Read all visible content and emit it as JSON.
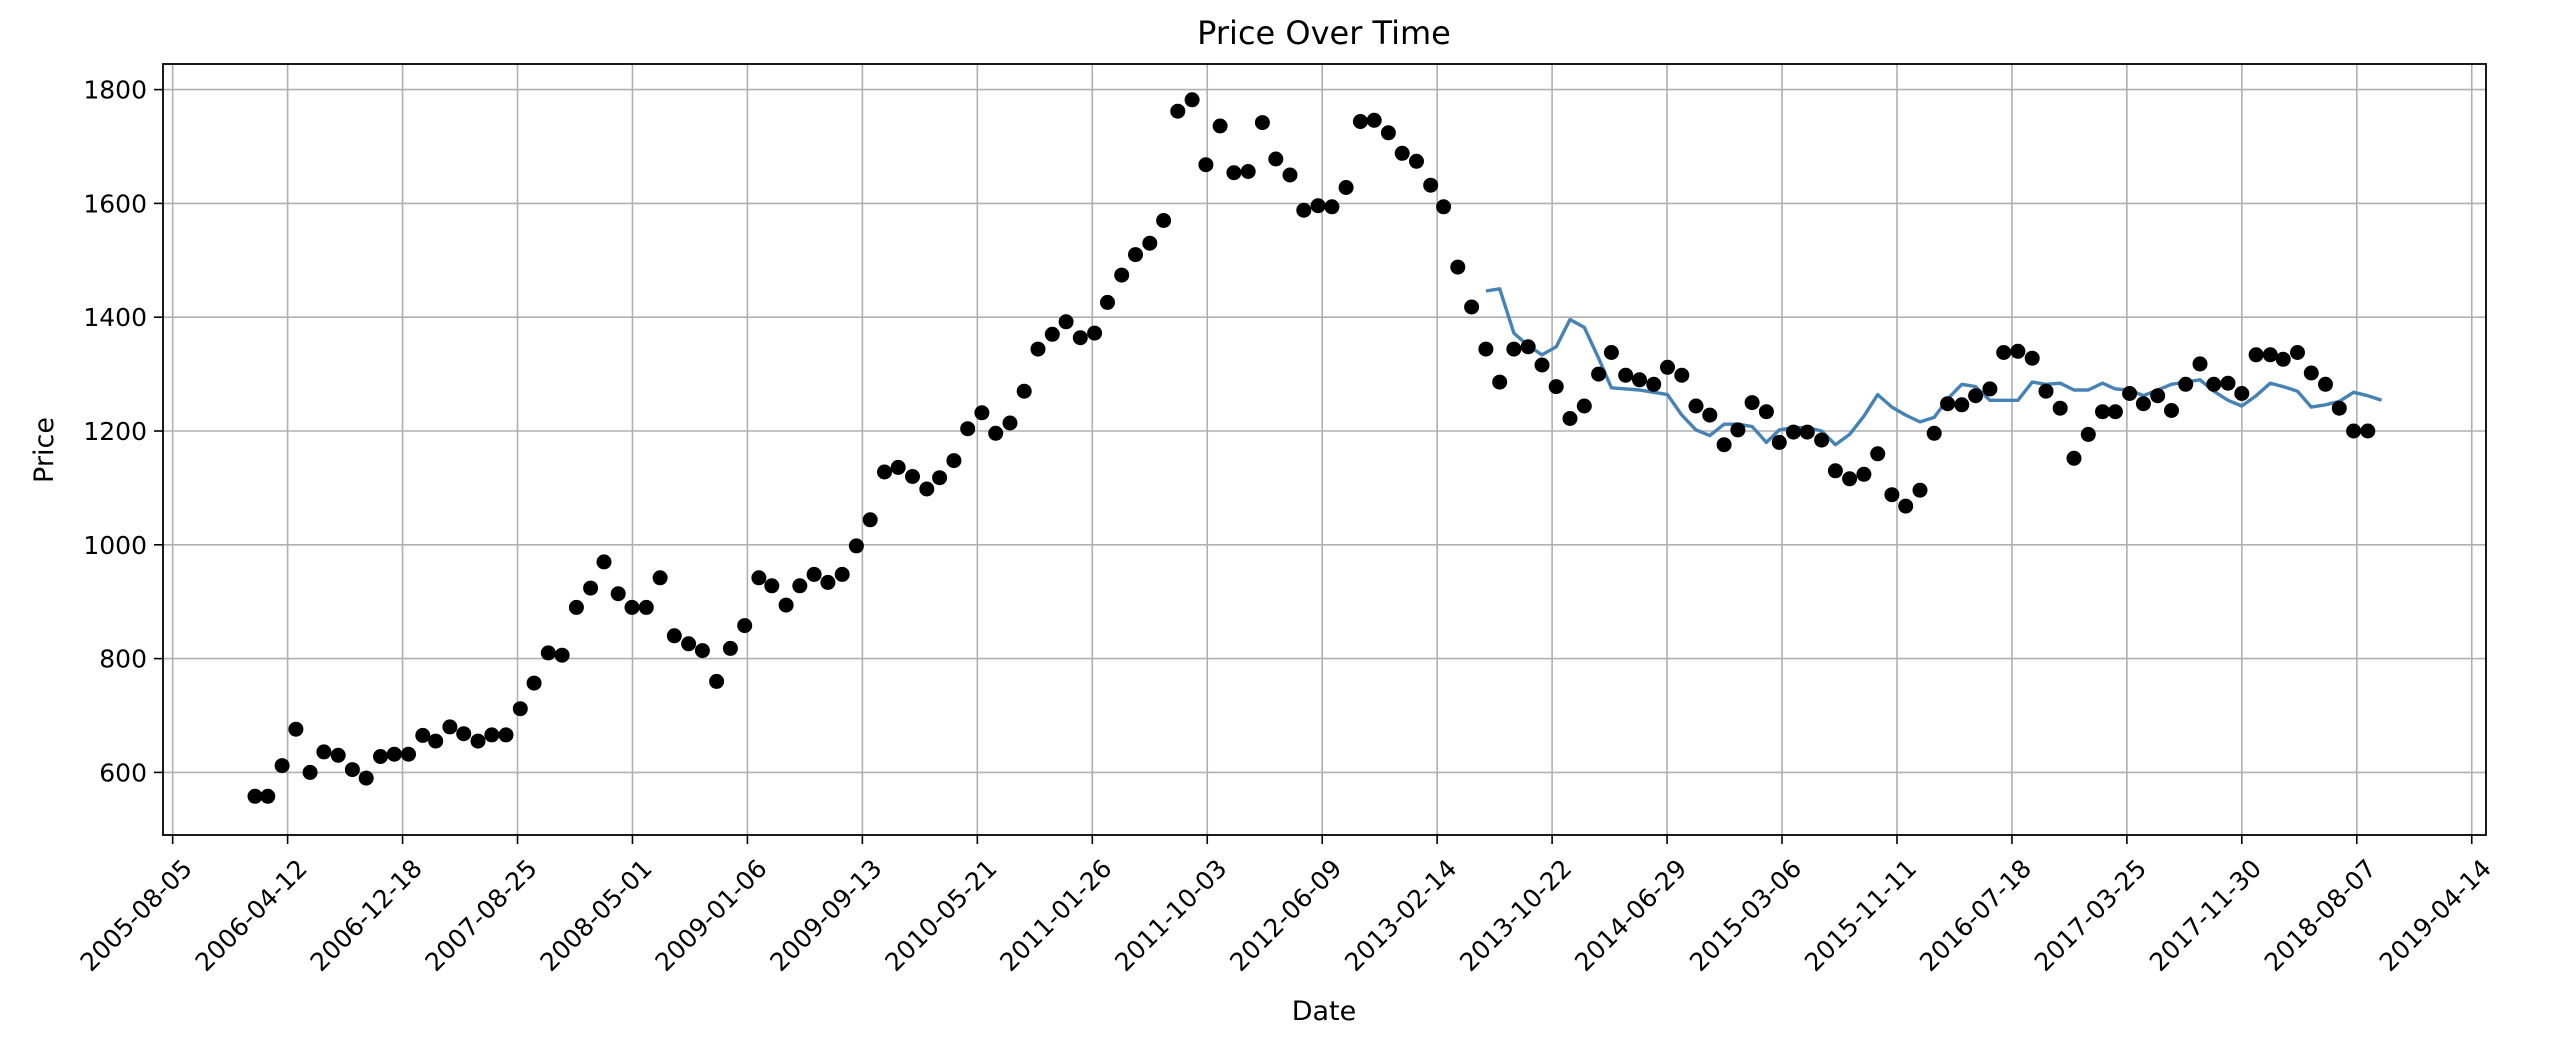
{
  "chart_data": {
    "type": "scatter",
    "title": "Price Over Time",
    "xlabel": "Date",
    "ylabel": "Price",
    "grid": true,
    "x_axis": {
      "range": [
        "2005-07-15",
        "2019-05-15"
      ],
      "ticks": [
        "2005-08-05",
        "2006-04-12",
        "2006-12-18",
        "2007-08-25",
        "2008-05-01",
        "2009-01-06",
        "2009-09-13",
        "2010-05-21",
        "2011-01-26",
        "2011-10-03",
        "2012-06-09",
        "2013-02-14",
        "2013-10-22",
        "2014-06-29",
        "2015-03-06",
        "2015-11-11",
        "2016-07-18",
        "2017-03-25",
        "2017-11-30",
        "2018-08-07",
        "2019-04-14"
      ]
    },
    "y_axis": {
      "range": [
        490,
        1845
      ],
      "ticks": [
        600,
        800,
        1000,
        1200,
        1400,
        1600,
        1800
      ]
    },
    "series": [
      {
        "kind": "scatter",
        "color": "#000000",
        "points": [
          [
            "2006-01-31",
            558
          ],
          [
            "2006-02-28",
            558
          ],
          [
            "2006-03-31",
            612
          ],
          [
            "2006-04-30",
            676
          ],
          [
            "2006-05-31",
            600
          ],
          [
            "2006-06-30",
            636
          ],
          [
            "2006-07-31",
            630
          ],
          [
            "2006-08-31",
            605
          ],
          [
            "2006-09-30",
            590
          ],
          [
            "2006-10-31",
            628
          ],
          [
            "2006-11-30",
            632
          ],
          [
            "2006-12-31",
            632
          ],
          [
            "2007-01-31",
            665
          ],
          [
            "2007-02-28",
            655
          ],
          [
            "2007-03-31",
            680
          ],
          [
            "2007-04-30",
            668
          ],
          [
            "2007-05-31",
            655
          ],
          [
            "2007-06-30",
            666
          ],
          [
            "2007-07-31",
            666
          ],
          [
            "2007-08-31",
            712
          ],
          [
            "2007-09-30",
            757
          ],
          [
            "2007-10-31",
            810
          ],
          [
            "2007-11-30",
            806
          ],
          [
            "2007-12-31",
            890
          ],
          [
            "2008-01-31",
            924
          ],
          [
            "2008-02-29",
            970
          ],
          [
            "2008-03-31",
            914
          ],
          [
            "2008-04-30",
            890
          ],
          [
            "2008-05-31",
            890
          ],
          [
            "2008-06-30",
            942
          ],
          [
            "2008-07-31",
            840
          ],
          [
            "2008-08-31",
            826
          ],
          [
            "2008-09-30",
            814
          ],
          [
            "2008-10-31",
            760
          ],
          [
            "2008-11-30",
            818
          ],
          [
            "2008-12-31",
            858
          ],
          [
            "2009-01-31",
            942
          ],
          [
            "2009-02-28",
            928
          ],
          [
            "2009-03-31",
            894
          ],
          [
            "2009-04-30",
            928
          ],
          [
            "2009-05-31",
            948
          ],
          [
            "2009-06-30",
            934
          ],
          [
            "2009-07-31",
            948
          ],
          [
            "2009-08-31",
            998
          ],
          [
            "2009-09-30",
            1044
          ],
          [
            "2009-10-31",
            1128
          ],
          [
            "2009-11-30",
            1136
          ],
          [
            "2009-12-31",
            1120
          ],
          [
            "2010-01-31",
            1098
          ],
          [
            "2010-02-28",
            1118
          ],
          [
            "2010-03-31",
            1148
          ],
          [
            "2010-04-30",
            1204
          ],
          [
            "2010-05-31",
            1232
          ],
          [
            "2010-06-30",
            1196
          ],
          [
            "2010-07-31",
            1214
          ],
          [
            "2010-08-31",
            1270
          ],
          [
            "2010-09-30",
            1344
          ],
          [
            "2010-10-31",
            1370
          ],
          [
            "2010-11-30",
            1392
          ],
          [
            "2010-12-31",
            1364
          ],
          [
            "2011-01-31",
            1372
          ],
          [
            "2011-02-28",
            1426
          ],
          [
            "2011-03-31",
            1474
          ],
          [
            "2011-04-30",
            1510
          ],
          [
            "2011-05-31",
            1530
          ],
          [
            "2011-06-30",
            1570
          ],
          [
            "2011-07-31",
            1762
          ],
          [
            "2011-08-31",
            1782
          ],
          [
            "2011-09-30",
            1668
          ],
          [
            "2011-10-31",
            1736
          ],
          [
            "2011-11-30",
            1654
          ],
          [
            "2011-12-31",
            1656
          ],
          [
            "2012-01-31",
            1742
          ],
          [
            "2012-02-29",
            1678
          ],
          [
            "2012-03-31",
            1650
          ],
          [
            "2012-04-30",
            1588
          ],
          [
            "2012-05-31",
            1596
          ],
          [
            "2012-06-30",
            1594
          ],
          [
            "2012-07-31",
            1628
          ],
          [
            "2012-08-31",
            1744
          ],
          [
            "2012-09-30",
            1746
          ],
          [
            "2012-10-31",
            1724
          ],
          [
            "2012-11-30",
            1688
          ],
          [
            "2012-12-31",
            1674
          ],
          [
            "2013-01-31",
            1632
          ],
          [
            "2013-02-28",
            1594
          ],
          [
            "2013-03-31",
            1488
          ],
          [
            "2013-04-30",
            1418
          ],
          [
            "2013-05-31",
            1344
          ],
          [
            "2013-06-30",
            1286
          ],
          [
            "2013-07-31",
            1344
          ],
          [
            "2013-08-31",
            1348
          ],
          [
            "2013-09-30",
            1316
          ],
          [
            "2013-10-31",
            1278
          ],
          [
            "2013-11-30",
            1222
          ],
          [
            "2013-12-31",
            1244
          ],
          [
            "2014-01-31",
            1300
          ],
          [
            "2014-02-28",
            1338
          ],
          [
            "2014-03-31",
            1298
          ],
          [
            "2014-04-30",
            1290
          ],
          [
            "2014-05-31",
            1282
          ],
          [
            "2014-06-30",
            1312
          ],
          [
            "2014-07-31",
            1298
          ],
          [
            "2014-08-31",
            1244
          ],
          [
            "2014-09-30",
            1228
          ],
          [
            "2014-10-31",
            1176
          ],
          [
            "2014-11-30",
            1202
          ],
          [
            "2014-12-31",
            1250
          ],
          [
            "2015-01-31",
            1234
          ],
          [
            "2015-02-28",
            1180
          ],
          [
            "2015-03-31",
            1198
          ],
          [
            "2015-04-30",
            1198
          ],
          [
            "2015-05-31",
            1184
          ],
          [
            "2015-06-30",
            1130
          ],
          [
            "2015-07-31",
            1116
          ],
          [
            "2015-08-31",
            1124
          ],
          [
            "2015-09-30",
            1160
          ],
          [
            "2015-10-31",
            1088
          ],
          [
            "2015-11-30",
            1068
          ],
          [
            "2015-12-31",
            1096
          ],
          [
            "2016-01-31",
            1196
          ],
          [
            "2016-02-29",
            1248
          ],
          [
            "2016-03-31",
            1246
          ],
          [
            "2016-04-30",
            1262
          ],
          [
            "2016-05-31",
            1274
          ],
          [
            "2016-06-30",
            1338
          ],
          [
            "2016-07-31",
            1340
          ],
          [
            "2016-08-31",
            1328
          ],
          [
            "2016-09-30",
            1270
          ],
          [
            "2016-10-31",
            1240
          ],
          [
            "2016-11-30",
            1152
          ],
          [
            "2016-12-31",
            1194
          ],
          [
            "2017-01-31",
            1234
          ],
          [
            "2017-02-28",
            1234
          ],
          [
            "2017-03-31",
            1266
          ],
          [
            "2017-04-30",
            1248
          ],
          [
            "2017-05-31",
            1262
          ],
          [
            "2017-06-30",
            1236
          ],
          [
            "2017-07-31",
            1282
          ],
          [
            "2017-08-31",
            1318
          ],
          [
            "2017-09-30",
            1282
          ],
          [
            "2017-10-31",
            1284
          ],
          [
            "2017-11-30",
            1266
          ],
          [
            "2017-12-31",
            1334
          ],
          [
            "2018-01-31",
            1334
          ],
          [
            "2018-02-28",
            1326
          ],
          [
            "2018-03-31",
            1338
          ],
          [
            "2018-04-30",
            1302
          ],
          [
            "2018-05-31",
            1282
          ],
          [
            "2018-06-30",
            1240
          ],
          [
            "2018-07-31",
            1200
          ],
          [
            "2018-08-31",
            1200
          ]
        ]
      },
      {
        "kind": "line",
        "color": "#4682b4",
        "points": [
          [
            "2013-05-31",
            1446
          ],
          [
            "2013-06-30",
            1450
          ],
          [
            "2013-07-31",
            1372
          ],
          [
            "2013-08-31",
            1350
          ],
          [
            "2013-09-30",
            1334
          ],
          [
            "2013-10-31",
            1348
          ],
          [
            "2013-11-30",
            1396
          ],
          [
            "2013-12-31",
            1382
          ],
          [
            "2014-01-31",
            1328
          ],
          [
            "2014-02-28",
            1276
          ],
          [
            "2014-03-31",
            1274
          ],
          [
            "2014-04-30",
            1272
          ],
          [
            "2014-05-31",
            1268
          ],
          [
            "2014-06-30",
            1264
          ],
          [
            "2014-07-31",
            1228
          ],
          [
            "2014-08-31",
            1202
          ],
          [
            "2014-09-30",
            1192
          ],
          [
            "2014-10-31",
            1212
          ],
          [
            "2014-11-30",
            1212
          ],
          [
            "2014-12-31",
            1208
          ],
          [
            "2015-01-31",
            1180
          ],
          [
            "2015-02-28",
            1202
          ],
          [
            "2015-03-31",
            1206
          ],
          [
            "2015-04-30",
            1206
          ],
          [
            "2015-05-31",
            1200
          ],
          [
            "2015-06-30",
            1176
          ],
          [
            "2015-07-31",
            1194
          ],
          [
            "2015-08-31",
            1226
          ],
          [
            "2015-09-30",
            1264
          ],
          [
            "2015-10-31",
            1242
          ],
          [
            "2015-11-30",
            1228
          ],
          [
            "2015-12-31",
            1216
          ],
          [
            "2016-01-31",
            1224
          ],
          [
            "2016-02-29",
            1256
          ],
          [
            "2016-03-31",
            1282
          ],
          [
            "2016-04-30",
            1278
          ],
          [
            "2016-05-31",
            1254
          ],
          [
            "2016-06-30",
            1254
          ],
          [
            "2016-07-31",
            1254
          ],
          [
            "2016-08-31",
            1286
          ],
          [
            "2016-09-30",
            1282
          ],
          [
            "2016-10-31",
            1284
          ],
          [
            "2016-11-30",
            1272
          ],
          [
            "2016-12-31",
            1272
          ],
          [
            "2017-01-31",
            1284
          ],
          [
            "2017-02-28",
            1274
          ],
          [
            "2017-03-31",
            1272
          ],
          [
            "2017-04-30",
            1262
          ],
          [
            "2017-05-31",
            1272
          ],
          [
            "2017-06-30",
            1282
          ],
          [
            "2017-07-31",
            1286
          ],
          [
            "2017-08-31",
            1290
          ],
          [
            "2017-09-30",
            1270
          ],
          [
            "2017-10-31",
            1254
          ],
          [
            "2017-11-30",
            1244
          ],
          [
            "2017-12-31",
            1262
          ],
          [
            "2018-01-31",
            1284
          ],
          [
            "2018-02-28",
            1278
          ],
          [
            "2018-03-31",
            1270
          ],
          [
            "2018-04-30",
            1242
          ],
          [
            "2018-05-31",
            1246
          ],
          [
            "2018-06-30",
            1252
          ],
          [
            "2018-07-31",
            1268
          ],
          [
            "2018-08-31",
            1262
          ],
          [
            "2018-09-30",
            1254
          ]
        ]
      }
    ]
  }
}
